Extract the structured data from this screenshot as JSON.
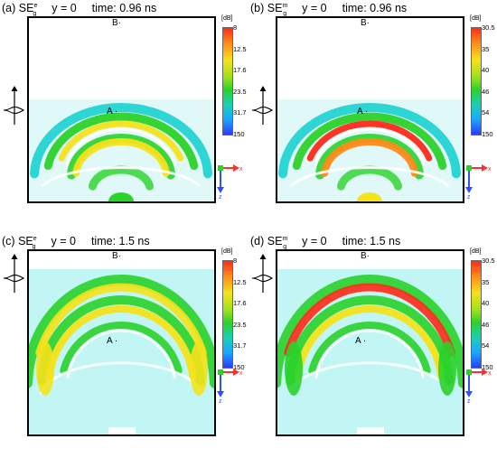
{
  "panels": [
    {
      "label": "(a)",
      "field": "SE",
      "sub": "g",
      "sup": "e",
      "y_eq": "y = 0",
      "time": "time: 0.96 ns",
      "marker_b": "B",
      "marker_a": "A",
      "colorbar": {
        "unit": "[dB]",
        "ticks": [
          "8",
          "12.5",
          "17.6",
          "23.5",
          "31.7",
          "150"
        ]
      },
      "axis_x": "x",
      "axis_z": "z"
    },
    {
      "label": "(b)",
      "field": "SE",
      "sub": "g",
      "sup": "m",
      "y_eq": "y = 0",
      "time": "time: 0.96 ns",
      "marker_b": "B",
      "marker_a": "A",
      "colorbar": {
        "unit": "[dB]",
        "ticks": [
          "30.5",
          "35",
          "40",
          "46",
          "54",
          "150"
        ]
      },
      "axis_x": "x",
      "axis_z": "z"
    },
    {
      "label": "(c)",
      "field": "SE",
      "sub": "g",
      "sup": "e",
      "y_eq": "y = 0",
      "time": "time: 1.5 ns",
      "marker_b": "B",
      "marker_a": "A",
      "colorbar": {
        "unit": "[dB]",
        "ticks": [
          "8",
          "12.5",
          "17.6",
          "23.5",
          "31.7",
          "150"
        ]
      },
      "axis_x": "x",
      "axis_z": "z"
    },
    {
      "label": "(d)",
      "field": "SE",
      "sub": "g",
      "sup": "m",
      "y_eq": "y = 0",
      "time": "time: 1.5 ns",
      "marker_b": "B",
      "marker_a": "A",
      "colorbar": {
        "unit": "[dB]",
        "ticks": [
          "30.5",
          "35",
          "40",
          "46",
          "54",
          "150"
        ]
      },
      "axis_x": "x",
      "axis_z": "z"
    }
  ],
  "colors": {
    "red": "#ff2a1a",
    "orange": "#ff8a1a",
    "yellow": "#f4e21a",
    "green": "#2ad22a",
    "cyan": "#19d0d0",
    "blue": "#2a3bff"
  }
}
